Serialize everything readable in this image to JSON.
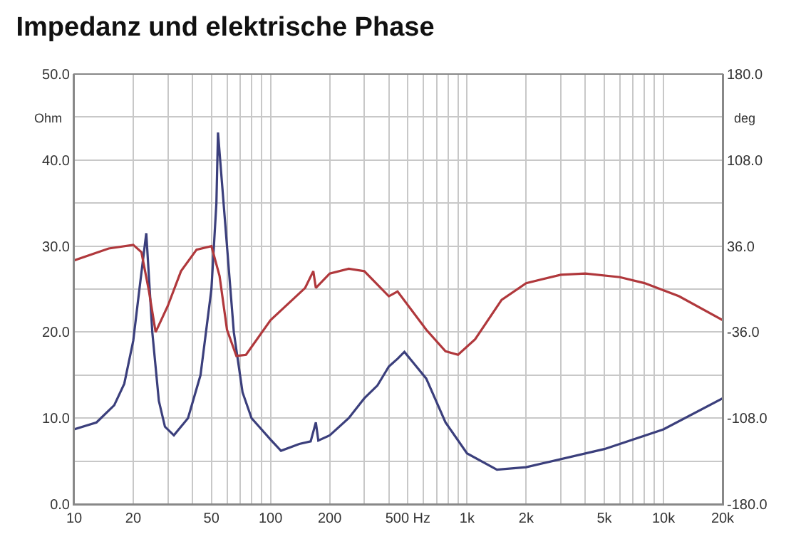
{
  "chart_data": {
    "type": "line",
    "title": "Impedanz und elektrische Phase",
    "ylabel": "Ohm",
    "y2label": "deg",
    "log": "x",
    "grid": true,
    "marker": "none",
    "line_style": "solid",
    "xlim": [
      10,
      20000
    ],
    "xticks": [
      10,
      20,
      {
        "value": 30,
        "label": null
      },
      {
        "value": 40,
        "label": null
      },
      50,
      {
        "value": 60,
        "label": null
      },
      {
        "value": 70,
        "label": null
      },
      {
        "value": 80,
        "label": null
      },
      {
        "value": 90,
        "label": null
      },
      100,
      200,
      {
        "value": 300,
        "label": null
      },
      {
        "value": 400,
        "label": null
      },
      {
        "value": 500,
        "label": "500 Hz"
      },
      {
        "value": 600,
        "label": null
      },
      {
        "value": 700,
        "label": null
      },
      {
        "value": 800,
        "label": null
      },
      {
        "value": 900,
        "label": null
      },
      {
        "value": 1000,
        "label": "1k"
      },
      {
        "value": 2000,
        "label": "2k"
      },
      {
        "value": 3000,
        "label": null
      },
      {
        "value": 4000,
        "label": null
      },
      {
        "value": 5000,
        "label": "5k"
      },
      {
        "value": 6000,
        "label": null
      },
      {
        "value": 7000,
        "label": null
      },
      {
        "value": 8000,
        "label": null
      },
      {
        "value": 9000,
        "label": null
      },
      {
        "value": 10000,
        "label": "10k"
      },
      {
        "value": 20000,
        "label": "20k"
      }
    ],
    "ylim": [
      0,
      50
    ],
    "yticks": [
      {
        "value": 0,
        "label": "0.0"
      },
      {
        "value": 5,
        "label": null
      },
      {
        "value": 10,
        "label": "10.0"
      },
      {
        "value": 15,
        "label": null
      },
      {
        "value": 20,
        "label": "20.0"
      },
      {
        "value": 25,
        "label": null
      },
      {
        "value": 30,
        "label": "30.0"
      },
      {
        "value": 35,
        "label": null
      },
      {
        "value": 40,
        "label": "40.0"
      },
      {
        "value": 45,
        "label": null
      },
      {
        "value": 50,
        "label": "50.0"
      }
    ],
    "y2lim": [
      -180,
      180
    ],
    "y2ticks": [
      {
        "value": -180,
        "label": "-180.0"
      },
      {
        "value": -108,
        "label": "-108.0"
      },
      {
        "value": -36,
        "label": "-36.0"
      },
      {
        "value": 36,
        "label": "36.0"
      },
      {
        "value": 108,
        "label": "108.0"
      },
      {
        "value": 180,
        "label": "180.0"
      }
    ],
    "series": [
      {
        "color": "#3b3f7c",
        "x": [
          10,
          13,
          16,
          18,
          20,
          21.5,
          23.3,
          25,
          27,
          29,
          32.2,
          38,
          44,
          50,
          53,
          54,
          60,
          65,
          72,
          80,
          100,
          113,
          140,
          160,
          170,
          175,
          200,
          250,
          300,
          350,
          400,
          443,
          480,
          620,
          777,
          1000,
          1420,
          2000,
          5000,
          10000,
          20000
        ],
        "values": [
          8.7,
          9.5,
          11.5,
          14,
          19,
          25,
          31.5,
          20,
          12,
          9,
          8.0,
          10,
          15,
          25,
          35,
          43.2,
          30,
          20,
          13,
          10,
          7.5,
          6.2,
          7.0,
          7.3,
          9.5,
          7.4,
          8,
          10,
          12.3,
          13.8,
          16,
          16.9,
          17.7,
          14.6,
          9.5,
          5.9,
          4.0,
          4.3,
          6.4,
          8.7,
          12.3
        ]
      },
      {
        "color": "#b0383c",
        "axis": "y2",
        "x": [
          10,
          15,
          20,
          22,
          24,
          26,
          30,
          35,
          42,
          50,
          55,
          60,
          67,
          75,
          100,
          150,
          165,
          170,
          200,
          250,
          300,
          400,
          443,
          620,
          777,
          900,
          1100,
          1500,
          2000,
          3000,
          4000,
          6000,
          8000,
          12000,
          20000
        ],
        "values": [
          24,
          34,
          37,
          31,
          -1,
          -36,
          -14,
          15,
          33,
          36,
          11,
          -34,
          -56,
          -55,
          -26,
          1,
          15,
          1,
          13,
          17,
          15,
          -6,
          -2,
          -34,
          -52,
          -55,
          -42,
          -9,
          5,
          12,
          13,
          10,
          5,
          -6,
          -26
        ]
      }
    ]
  }
}
